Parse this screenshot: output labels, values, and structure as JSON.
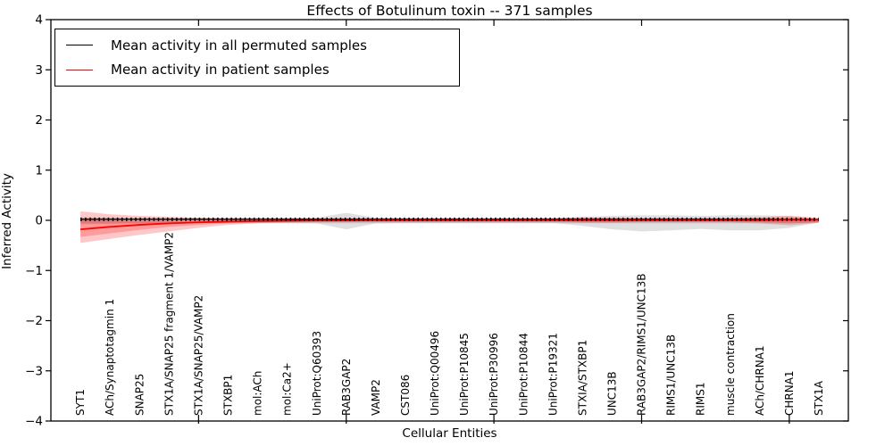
{
  "title": "Effects of Botulinum toxin -- 371 samples",
  "axes": {
    "xlabel": "Cellular Entities",
    "ylabel": "Inferred Activity"
  },
  "legend": {
    "entries": [
      {
        "label": "Mean activity in all permuted samples",
        "color": "#000000"
      },
      {
        "label": "Mean activity in patient samples",
        "color": "#ff0000"
      }
    ]
  },
  "chart_data": {
    "type": "line",
    "title": "Effects of Botulinum toxin -- 371 samples",
    "xlabel": "Cellular Entities",
    "ylabel": "Inferred Activity",
    "ylim": [
      -4,
      4
    ],
    "yticks": [
      4,
      3,
      2,
      1,
      0,
      -1,
      -2,
      -3,
      -4
    ],
    "ytick_labels": [
      "4",
      "3",
      "2",
      "1",
      "0",
      "−1",
      "−2",
      "−3",
      "−4"
    ],
    "xlim": [
      0,
      27
    ],
    "xticks": [
      5,
      10,
      15,
      20,
      25
    ],
    "grid": false,
    "legend_position": "upper-left",
    "x": [
      1,
      2,
      3,
      4,
      5,
      6,
      7,
      8,
      9,
      10,
      11,
      12,
      13,
      14,
      15,
      16,
      17,
      18,
      19,
      20,
      21,
      22,
      23,
      24,
      25,
      26
    ],
    "categories": [
      "SYT1",
      "ACh/Synaptotagmin 1",
      "SNAP25",
      "STX1A/SNAP25 fragment 1/VAMP2",
      "STX1A/SNAP25/VAMP2",
      "STXBP1",
      "mol:ACh",
      "mol:Ca2+",
      "UniProt:Q60393",
      "RAB3GAP2",
      "VAMP2",
      "CST086",
      "UniProt:Q00496",
      "UniProt:P10845",
      "UniProt:P30996",
      "UniProt:P10844",
      "UniProt:P19321",
      "STXIA/STXBP1",
      "UNC13B",
      "RAB3GAP2/RIMS1/UNC13B",
      "RIMS1/UNC13B",
      "RIMS1",
      "muscle contraction",
      "ACh/CHRNA1",
      "CHRNA1",
      "STX1A"
    ],
    "series": [
      {
        "name": "Mean activity in all permuted samples",
        "color": "#000000",
        "values": [
          0.02,
          0.02,
          0.02,
          0.02,
          0.02,
          0.02,
          0.02,
          0.02,
          0.02,
          0.02,
          0.02,
          0.02,
          0.02,
          0.02,
          0.02,
          0.02,
          0.02,
          0.02,
          0.02,
          0.02,
          0.02,
          0.02,
          0.02,
          0.02,
          0.02,
          0.02
        ]
      },
      {
        "name": "Mean activity in patient samples",
        "color": "#ff0000",
        "values": [
          -0.18,
          -0.13,
          -0.09,
          -0.06,
          -0.04,
          -0.025,
          -0.015,
          -0.01,
          -0.005,
          -0.005,
          0,
          0,
          0,
          0,
          0,
          0,
          0,
          0,
          0,
          0,
          0,
          0,
          0,
          0,
          0.01,
          0.01
        ]
      }
    ],
    "bands": [
      {
        "name": "permuted-std-narrow",
        "color": "#999999",
        "opacity": 0.3,
        "upper": [
          0.05,
          0.05,
          0.05,
          0.05,
          0.05,
          0.05,
          0.05,
          0.05,
          0.05,
          0.05,
          0.05,
          0.05,
          0.05,
          0.05,
          0.05,
          0.05,
          0.05,
          0.05,
          0.05,
          0.05,
          0.05,
          0.05,
          0.05,
          0.05,
          0.05,
          0.03
        ],
        "lower": [
          -0.06,
          -0.06,
          -0.06,
          -0.06,
          -0.06,
          -0.06,
          -0.06,
          -0.06,
          -0.06,
          -0.06,
          -0.06,
          -0.06,
          -0.06,
          -0.06,
          -0.06,
          -0.06,
          -0.06,
          -0.06,
          -0.06,
          -0.06,
          -0.06,
          -0.06,
          -0.06,
          -0.06,
          -0.06,
          -0.04
        ]
      },
      {
        "name": "permuted-std-wide",
        "color": "#999999",
        "opacity": 0.3,
        "upper": [
          0.06,
          0.05,
          0.04,
          0.04,
          0.04,
          0.04,
          0.04,
          0.04,
          0.05,
          0.15,
          0.05,
          0.04,
          0.04,
          0.04,
          0.04,
          0.04,
          0.04,
          0.07,
          0.09,
          0.1,
          0.1,
          0.09,
          0.1,
          0.1,
          0.09,
          0.03
        ],
        "lower": [
          -0.08,
          -0.07,
          -0.06,
          -0.06,
          -0.05,
          -0.05,
          -0.05,
          -0.05,
          -0.06,
          -0.18,
          -0.06,
          -0.05,
          -0.05,
          -0.05,
          -0.05,
          -0.05,
          -0.05,
          -0.11,
          -0.18,
          -0.22,
          -0.2,
          -0.17,
          -0.2,
          -0.2,
          -0.15,
          -0.04
        ]
      },
      {
        "name": "patient-std-outer",
        "color": "#ff0000",
        "opacity": 0.22,
        "upper": [
          0.18,
          0.12,
          0.09,
          0.07,
          0.05,
          0.04,
          0.04,
          0.035,
          0.035,
          0.035,
          0.035,
          0.035,
          0.035,
          0.035,
          0.035,
          0.035,
          0.035,
          0.06,
          0.05,
          0.04,
          0.04,
          0.04,
          0.04,
          0.06,
          0.09,
          0.05
        ],
        "lower": [
          -0.45,
          -0.37,
          -0.29,
          -0.22,
          -0.15,
          -0.09,
          -0.06,
          -0.045,
          -0.04,
          -0.04,
          -0.04,
          -0.04,
          -0.04,
          -0.04,
          -0.04,
          -0.04,
          -0.04,
          -0.05,
          -0.05,
          -0.045,
          -0.045,
          -0.045,
          -0.045,
          -0.06,
          -0.1,
          -0.05
        ]
      },
      {
        "name": "patient-std-inner",
        "color": "#ff0000",
        "opacity": 0.22,
        "upper": [
          0.02,
          -0.01,
          -0.02,
          -0.02,
          -0.015,
          -0.01,
          -0.005,
          0,
          0,
          0,
          0,
          0,
          0,
          0,
          0,
          0,
          0,
          0.02,
          0.01,
          0.01,
          0.01,
          0.01,
          0.01,
          0.02,
          0.04,
          0.03
        ],
        "lower": [
          -0.33,
          -0.26,
          -0.19,
          -0.13,
          -0.09,
          -0.06,
          -0.04,
          -0.025,
          -0.02,
          -0.02,
          -0.02,
          -0.02,
          -0.02,
          -0.02,
          -0.02,
          -0.02,
          -0.02,
          -0.03,
          -0.03,
          -0.025,
          -0.025,
          -0.025,
          -0.025,
          -0.035,
          -0.06,
          -0.04
        ]
      }
    ]
  }
}
